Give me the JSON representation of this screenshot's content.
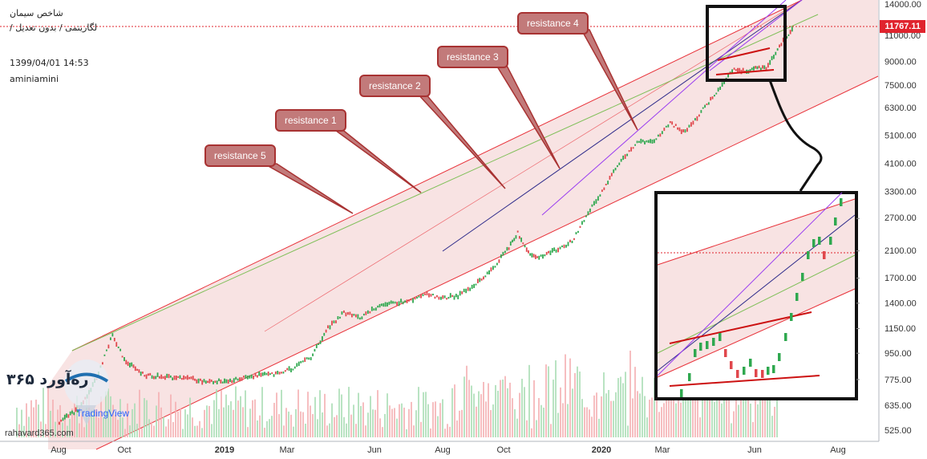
{
  "title": "شاخص سیمان",
  "subtitle": "لگاریتمی / بدون تعدیل /",
  "timestamp": "1399/04/01 14:53",
  "author": "aminiamini",
  "last_price": "11767.11",
  "website": "rahavard365.com",
  "logo_text": "ره‌آورد ۳۶۵",
  "watermark": "TradingView",
  "colors": {
    "channel_fill": "#f6d9da",
    "channel_line": "#e8323a",
    "trend_green": "#7fbf58",
    "candle_up": "#2fa84f",
    "candle_down": "#e0474c",
    "volume_up": "#a7dcb3",
    "volume_down": "#f4aeb0",
    "callout_fill": "#c27a7a",
    "zoom_box": "#111111"
  },
  "callouts": [
    {
      "label": "resistance 4"
    },
    {
      "label": "resistance 3"
    },
    {
      "label": "resistance 2"
    },
    {
      "label": "resistance 1"
    },
    {
      "label": "resistance 5"
    }
  ],
  "chart_data": {
    "type": "line",
    "scale": "log",
    "x_axis_ticks": [
      "Aug",
      "Oct",
      "2019",
      "Mar",
      "Jun",
      "Aug",
      "Oct",
      "2020",
      "Mar",
      "Jun",
      "Aug"
    ],
    "bold_ticks": [
      "2019",
      "2020"
    ],
    "y_axis_ticks": [
      "14000.00",
      "11000.00",
      "9000.00",
      "7500.00",
      "6300.00",
      "5100.00",
      "4100.00",
      "3300.00",
      "2700.00",
      "2100.00",
      "1700.00",
      "1400.00",
      "1150.00",
      "950.00",
      "775.00",
      "635.00",
      "525.00"
    ],
    "inset_y_ticks": [
      "3300.00",
      "2700.00",
      "2100.00",
      "1700.00",
      "1400.00",
      "1150.00",
      "950.00",
      "775.00",
      "635.00"
    ],
    "ylim": [
      490,
      14500
    ],
    "series": [
      {
        "values": [
          [
            "2018-08-01",
            560
          ],
          [
            "2018-08-20",
            620
          ],
          [
            "2018-09-05",
            780
          ],
          [
            "2018-09-20",
            1100
          ],
          [
            "2018-10-01",
            900
          ],
          [
            "2018-10-20",
            800
          ],
          [
            "2018-11-10",
            790
          ],
          [
            "2018-12-01",
            780
          ],
          [
            "2018-12-20",
            760
          ],
          [
            "2019-01-10",
            770
          ],
          [
            "2019-02-01",
            800
          ],
          [
            "2019-02-20",
            810
          ],
          [
            "2019-03-10",
            850
          ],
          [
            "2019-03-25",
            920
          ],
          [
            "2019-04-10",
            1150
          ],
          [
            "2019-04-25",
            1300
          ],
          [
            "2019-05-10",
            1250
          ],
          [
            "2019-05-25",
            1350
          ],
          [
            "2019-06-10",
            1400
          ],
          [
            "2019-06-25",
            1420
          ],
          [
            "2019-07-10",
            1500
          ],
          [
            "2019-07-25",
            1450
          ],
          [
            "2019-08-10",
            1480
          ],
          [
            "2019-08-25",
            1600
          ],
          [
            "2019-09-10",
            1800
          ],
          [
            "2019-09-25",
            2100
          ],
          [
            "2019-10-05",
            2400
          ],
          [
            "2019-10-15",
            2050
          ],
          [
            "2019-10-25",
            2000
          ],
          [
            "2019-11-10",
            2100
          ],
          [
            "2019-11-25",
            2250
          ],
          [
            "2019-12-10",
            2800
          ],
          [
            "2019-12-25",
            3400
          ],
          [
            "2020-01-10",
            4200
          ],
          [
            "2020-01-25",
            4800
          ],
          [
            "2020-02-10",
            4900
          ],
          [
            "2020-02-25",
            5600
          ],
          [
            "2020-03-10",
            5200
          ],
          [
            "2020-03-25",
            6100
          ],
          [
            "2020-04-10",
            7200
          ],
          [
            "2020-04-25",
            8500
          ],
          [
            "2020-05-05",
            8300
          ],
          [
            "2020-05-15",
            8600
          ],
          [
            "2020-05-25",
            8500
          ],
          [
            "2020-06-10",
            10500
          ],
          [
            "2020-06-20",
            11767
          ]
        ]
      }
    ]
  }
}
